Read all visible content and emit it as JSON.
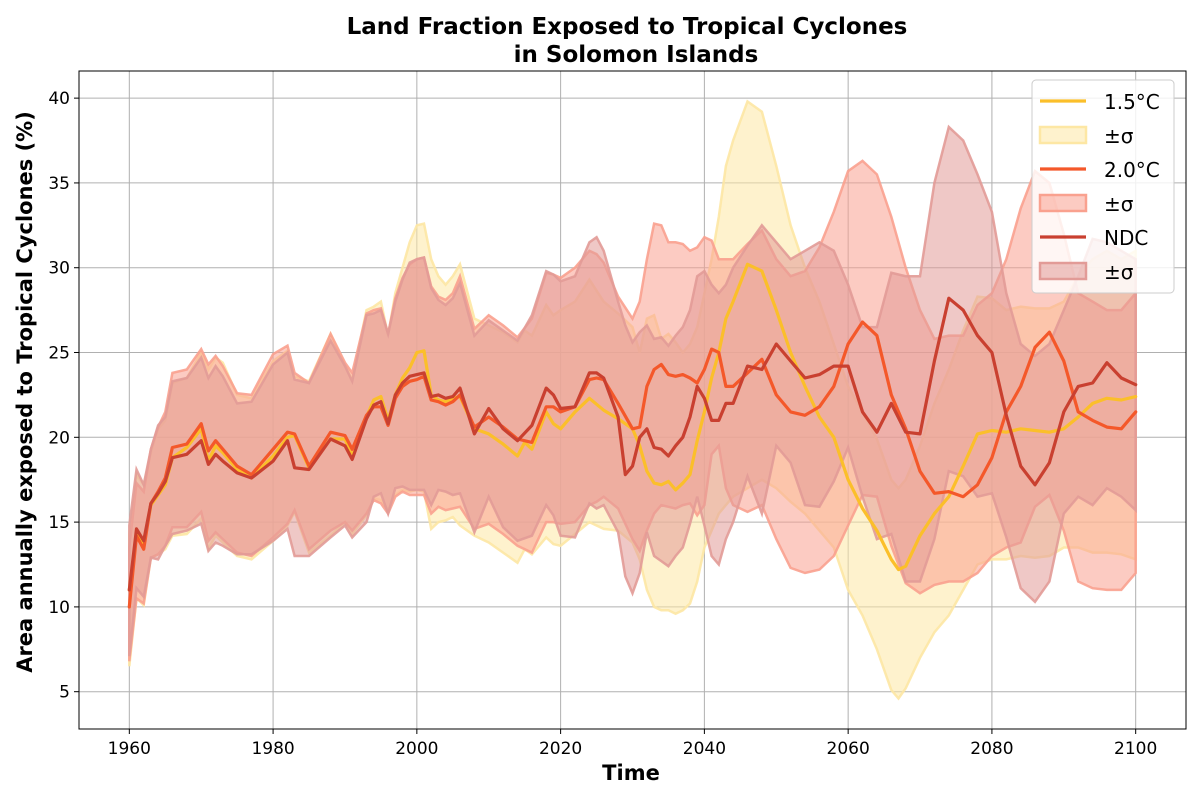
{
  "chart_data": {
    "type": "area",
    "title": "Land Fraction Exposed to Tropical Cyclones",
    "subtitle": "in Solomon Islands",
    "xlabel": "Time",
    "ylabel": "Area annually exposed to Tropical Cyclones (%)",
    "xlim": [
      1953,
      2107
    ],
    "ylim": [
      2.8,
      41.6
    ],
    "xticks": [
      1960,
      1980,
      2000,
      2020,
      2040,
      2060,
      2080,
      2100
    ],
    "yticks": [
      5,
      10,
      15,
      20,
      25,
      30,
      35,
      40
    ],
    "grid": true,
    "legend_position": "top-right",
    "series": [
      {
        "name": "1.5°C",
        "band_label": "±σ",
        "color": "#fbbf2a",
        "band_color": "#fde7a4",
        "x": [
          1960,
          1961,
          1962,
          1963,
          1964,
          1965,
          1966,
          1968,
          1970,
          1971,
          1972,
          1973,
          1975,
          1977,
          1980,
          1982,
          1983,
          1985,
          1988,
          1990,
          1991,
          1993,
          1994,
          1995,
          1996,
          1997,
          1998,
          1999,
          2000,
          2001,
          2002,
          2003,
          2004,
          2005,
          2006,
          2008,
          2010,
          2012,
          2014,
          2015,
          2016,
          2018,
          2019,
          2020,
          2022,
          2024,
          2026,
          2028,
          2030,
          2031,
          2032,
          2033,
          2034,
          2035,
          2036,
          2037,
          2038,
          2039,
          2040,
          2041,
          2042,
          2043,
          2044,
          2046,
          2048,
          2050,
          2052,
          2054,
          2056,
          2058,
          2060,
          2062,
          2064,
          2066,
          2067,
          2068,
          2070,
          2072,
          2074,
          2076,
          2078,
          2080,
          2082,
          2084,
          2086,
          2088,
          2090,
          2092,
          2094,
          2096,
          2098,
          2100
        ],
        "mean": [
          11,
          14.3,
          13.7,
          16,
          16.6,
          17.2,
          18.8,
          19.4,
          20.5,
          18.6,
          19.5,
          19.1,
          18.1,
          17.6,
          18.9,
          20,
          20.1,
          18.2,
          19.9,
          19.9,
          18.9,
          21.2,
          22.2,
          22.4,
          21,
          22.5,
          23.5,
          24.1,
          25,
          25.1,
          22.5,
          22.2,
          22.1,
          22.3,
          22.4,
          20.5,
          20.2,
          19.6,
          18.9,
          19.7,
          19.3,
          21.5,
          20.8,
          20.5,
          21.5,
          22.3,
          21.6,
          21.1,
          20.5,
          19.5,
          18,
          17.3,
          17.2,
          17.4,
          16.9,
          17.3,
          17.8,
          19.8,
          21.5,
          23.5,
          25,
          27,
          28,
          30.2,
          29.8,
          27.5,
          25,
          23,
          21.2,
          20,
          17.5,
          15.8,
          14.5,
          12.8,
          12.2,
          12.4,
          14.2,
          15.5,
          16.5,
          18.3,
          20.2,
          20.4,
          20.3,
          20.5,
          20.4,
          20.3,
          20.5,
          21.2,
          22,
          22.3,
          22.2,
          22.4
        ],
        "upper": [
          14.3,
          17.8,
          17.2,
          19.1,
          20.5,
          21,
          23.2,
          23.5,
          25,
          24,
          24.7,
          24.4,
          22.5,
          22.3,
          24.5,
          25.1,
          23.6,
          23.3,
          26.1,
          24.3,
          23.4,
          27.5,
          27.7,
          28,
          26,
          28.5,
          30,
          31.5,
          32.5,
          32.6,
          30.5,
          29.5,
          29,
          29.5,
          30.2,
          27,
          26.6,
          26.2,
          25.6,
          26.3,
          26,
          27.8,
          27.2,
          27.5,
          28,
          29.3,
          28,
          27.3,
          26.5,
          25,
          27,
          27.2,
          25.8,
          26.1,
          25.6,
          25,
          25.5,
          26.5,
          28.5,
          30.5,
          33,
          36,
          37.5,
          39.8,
          39.2,
          36,
          32.5,
          30,
          28,
          25.5,
          23,
          21.5,
          19.9,
          17.5,
          17,
          17.5,
          19.5,
          22,
          24,
          26.3,
          28.3,
          28.2,
          27.5,
          27.7,
          27.6,
          27.6,
          28,
          29.5,
          30.5,
          31,
          30.5,
          31
        ],
        "lower": [
          6.5,
          10.5,
          10.1,
          12.9,
          13.1,
          13.4,
          14.2,
          14.3,
          15.2,
          13.4,
          14.2,
          13.8,
          13,
          12.8,
          13.9,
          14.8,
          15.6,
          13.2,
          14.2,
          15,
          14.3,
          15.4,
          16.4,
          16.3,
          15.7,
          16.6,
          16.9,
          16.8,
          16.9,
          16.8,
          14.6,
          15,
          15.1,
          15.3,
          14.8,
          14.2,
          13.8,
          13.2,
          12.6,
          13.4,
          13.1,
          14.1,
          13.7,
          13.6,
          14.3,
          15,
          14.6,
          14.5,
          13.8,
          12.8,
          11,
          10,
          9.8,
          9.8,
          9.6,
          9.8,
          10.2,
          11.5,
          13.5,
          14.5,
          15.5,
          16,
          16.5,
          17,
          17.5,
          17,
          16.2,
          15.5,
          14.5,
          13.5,
          11,
          9.5,
          7.5,
          5.1,
          4.6,
          5.2,
          7,
          8.5,
          9.5,
          11,
          12.5,
          12.8,
          12.8,
          13,
          12.9,
          13,
          13.5,
          13.5,
          13.2,
          13.2,
          13.1,
          12.8
        ]
      },
      {
        "name": "2.0°C",
        "band_label": "±σ",
        "color": "#f4582a",
        "band_color": "#f9a18f",
        "x": [
          1960,
          1961,
          1962,
          1963,
          1964,
          1965,
          1966,
          1968,
          1970,
          1971,
          1972,
          1973,
          1975,
          1977,
          1980,
          1982,
          1983,
          1985,
          1988,
          1990,
          1991,
          1993,
          1994,
          1995,
          1996,
          1997,
          1998,
          1999,
          2000,
          2001,
          2002,
          2003,
          2004,
          2005,
          2006,
          2008,
          2010,
          2012,
          2014,
          2016,
          2018,
          2019,
          2020,
          2022,
          2024,
          2025,
          2026,
          2028,
          2030,
          2031,
          2032,
          2033,
          2034,
          2035,
          2036,
          2037,
          2038,
          2039,
          2040,
          2041,
          2042,
          2043,
          2044,
          2046,
          2048,
          2050,
          2052,
          2054,
          2056,
          2058,
          2060,
          2062,
          2064,
          2066,
          2068,
          2070,
          2072,
          2074,
          2076,
          2078,
          2080,
          2082,
          2084,
          2086,
          2088,
          2090,
          2092,
          2094,
          2096,
          2098,
          2100
        ],
        "mean": [
          10,
          14.2,
          13.4,
          16.1,
          16.8,
          17.6,
          19.4,
          19.6,
          20.8,
          19.2,
          19.8,
          19.3,
          18.3,
          17.8,
          19.3,
          20.3,
          20.2,
          18.3,
          20.3,
          20.1,
          19.3,
          21.3,
          21.8,
          21.8,
          20.7,
          22.3,
          23,
          23.3,
          23.4,
          23.6,
          22.2,
          22.1,
          21.9,
          22.1,
          22.5,
          20.6,
          21.2,
          20.6,
          19.9,
          19.7,
          21.8,
          21.8,
          21.5,
          21.8,
          23.4,
          23.5,
          23.4,
          22,
          20.5,
          20.6,
          23,
          24,
          24.3,
          23.7,
          23.6,
          23.7,
          23.5,
          23.2,
          24,
          25.2,
          25,
          23,
          23,
          23.8,
          24.6,
          22.5,
          21.5,
          21.3,
          21.8,
          23,
          25.5,
          26.8,
          26,
          22.5,
          20.5,
          18,
          16.7,
          16.8,
          16.5,
          17.2,
          18.8,
          21.5,
          23,
          25.3,
          26.2,
          24.5,
          21.5,
          21,
          20.6,
          20.5,
          21.5
        ],
        "upper": [
          13.5,
          17.3,
          16.8,
          19.3,
          20.6,
          21.5,
          23.8,
          24,
          25.2,
          24.3,
          24.8,
          24.2,
          22.6,
          22.5,
          24.9,
          25.4,
          23.8,
          23.2,
          26.1,
          24.4,
          23.8,
          27.3,
          27.5,
          27.6,
          26.1,
          28.2,
          29.4,
          30.2,
          30.5,
          30.6,
          28.9,
          28.3,
          28.1,
          28.5,
          29.5,
          26.4,
          27.2,
          26.6,
          25.9,
          27,
          29.7,
          29.6,
          29.4,
          30,
          31,
          30.8,
          30.3,
          28.3,
          27,
          28,
          30.5,
          32.6,
          32.5,
          31.5,
          31.5,
          31.4,
          31,
          31.2,
          31.8,
          31.6,
          30.5,
          30.5,
          30.5,
          31.4,
          32.2,
          30.5,
          29.5,
          29.8,
          31.2,
          33.3,
          35.7,
          36.3,
          35.5,
          33,
          30,
          27.5,
          25.8,
          26,
          26,
          27.8,
          28.5,
          30.5,
          33.5,
          35.7,
          35,
          32,
          28.5,
          28,
          27.5,
          27.5,
          28.5
        ],
        "lower": [
          6.8,
          10.5,
          10.2,
          12.9,
          13.1,
          13.6,
          14.7,
          14.7,
          15.6,
          13.9,
          14.4,
          14,
          13.2,
          13,
          14.1,
          14.9,
          15.7,
          13.4,
          14.5,
          15,
          14.5,
          15.5,
          16.3,
          16.1,
          15.5,
          16.5,
          16.8,
          16.6,
          16.6,
          16.6,
          15.5,
          15.9,
          15.7,
          15.8,
          15.9,
          14.6,
          14.9,
          14.3,
          13.6,
          13.2,
          15,
          15,
          14.9,
          15,
          16,
          16.2,
          16.5,
          15.8,
          14,
          13.3,
          14.5,
          15.5,
          16,
          15.9,
          15.8,
          16,
          16.1,
          15.4,
          16,
          19,
          19.5,
          17,
          16,
          15.6,
          16,
          14,
          12.3,
          12,
          12.2,
          13,
          14.8,
          16.6,
          16.5,
          13.6,
          11.4,
          10.8,
          11.3,
          11.5,
          11.5,
          12,
          13,
          13.5,
          13.8,
          15.9,
          16.6,
          14.5,
          11.5,
          11.1,
          11,
          11,
          12
        ],
        "series_label": "2.0°C"
      },
      {
        "name": "NDC",
        "band_label": "±σ",
        "color": "#c94030",
        "band_color": "#e29b97",
        "x": [
          1960,
          1961,
          1962,
          1963,
          1964,
          1965,
          1966,
          1968,
          1970,
          1971,
          1972,
          1973,
          1975,
          1977,
          1980,
          1982,
          1983,
          1985,
          1988,
          1990,
          1991,
          1993,
          1994,
          1995,
          1996,
          1997,
          1998,
          1999,
          2000,
          2001,
          2002,
          2003,
          2004,
          2005,
          2006,
          2008,
          2010,
          2012,
          2014,
          2016,
          2018,
          2019,
          2020,
          2022,
          2024,
          2025,
          2026,
          2028,
          2029,
          2030,
          2031,
          2032,
          2033,
          2034,
          2035,
          2036,
          2037,
          2038,
          2039,
          2040,
          2041,
          2042,
          2043,
          2044,
          2046,
          2048,
          2050,
          2052,
          2054,
          2056,
          2058,
          2060,
          2062,
          2064,
          2066,
          2068,
          2070,
          2072,
          2074,
          2076,
          2078,
          2080,
          2082,
          2084,
          2086,
          2088,
          2090,
          2092,
          2094,
          2096,
          2098,
          2100
        ],
        "mean": [
          11,
          14.6,
          13.9,
          16.1,
          16.7,
          17.4,
          18.8,
          19,
          19.8,
          18.4,
          19,
          18.6,
          17.9,
          17.6,
          18.6,
          19.8,
          18.2,
          18.1,
          19.9,
          19.5,
          18.7,
          21.1,
          21.9,
          22.1,
          20.8,
          22.5,
          23.2,
          23.6,
          23.7,
          23.8,
          22.4,
          22.5,
          22.3,
          22.4,
          22.9,
          20.2,
          21.7,
          20.5,
          19.8,
          20.7,
          22.9,
          22.5,
          21.7,
          21.8,
          23.8,
          23.8,
          23.5,
          21.2,
          17.8,
          18.3,
          20,
          20.5,
          19.4,
          19.3,
          18.9,
          19.5,
          20,
          21.2,
          23,
          22.3,
          21,
          21,
          22,
          22,
          24.2,
          24,
          25.5,
          24.5,
          23.5,
          23.7,
          24.2,
          24.2,
          21.5,
          20.3,
          22,
          20.3,
          20.2,
          24.5,
          28.2,
          27.5,
          26,
          25,
          21.3,
          18.3,
          17.2,
          18.5,
          21.5,
          23,
          23.2,
          24.4,
          23.5,
          23.1
        ],
        "upper": [
          14.8,
          18.1,
          17.2,
          19.3,
          20.7,
          21.2,
          23.3,
          23.5,
          24.7,
          23.5,
          24.2,
          23.6,
          22,
          22.1,
          24.3,
          25,
          23.4,
          23.2,
          25.7,
          24.2,
          23.3,
          27.2,
          27.3,
          27.5,
          26.1,
          28,
          29.3,
          30.3,
          30.5,
          30.6,
          28.8,
          28.1,
          27.8,
          28.2,
          29.1,
          26,
          26.9,
          26.3,
          25.7,
          27.2,
          29.8,
          29.6,
          29.2,
          29.5,
          31.5,
          31.8,
          31,
          28,
          26.6,
          25.6,
          26.2,
          26.6,
          25.8,
          25.9,
          25.4,
          26,
          26.5,
          27.5,
          29.5,
          29.8,
          29,
          28.5,
          29,
          30,
          31.3,
          32.5,
          31.5,
          30.5,
          31,
          31.5,
          31,
          29,
          26.5,
          26.5,
          29.7,
          29.5,
          29.5,
          35,
          38.3,
          37.5,
          35.5,
          33.3,
          28.5,
          25.5,
          24.8,
          25.5,
          27.5,
          29.5,
          31.7,
          31.5,
          31,
          30.5
        ],
        "lower": [
          7.1,
          11.1,
          10.6,
          12.9,
          12.8,
          13.6,
          14.3,
          14.5,
          14.9,
          13.3,
          13.8,
          13.6,
          13.1,
          13.1,
          13.9,
          14.6,
          13,
          13,
          14.1,
          14.8,
          14.1,
          15,
          16.5,
          16.7,
          15.5,
          17,
          17.1,
          16.9,
          16.9,
          16.9,
          16,
          16.9,
          16.8,
          16.6,
          16.7,
          14.4,
          16.5,
          14.7,
          13.9,
          14.2,
          16,
          15.4,
          14.2,
          14.1,
          16.1,
          15.8,
          16,
          14.4,
          11.8,
          10.8,
          12,
          14.4,
          13,
          12.7,
          12.4,
          13,
          13.5,
          14.9,
          16.5,
          14.8,
          13,
          12.5,
          14,
          15,
          17.7,
          15.5,
          19.5,
          18.5,
          16,
          15.9,
          17.4,
          19.4,
          16.5,
          14,
          14.3,
          11.5,
          11.5,
          14,
          18,
          17.7,
          16.5,
          16.7,
          14.1,
          11.1,
          10.3,
          11.5,
          15.5,
          16.5,
          16,
          17,
          16.5,
          15.7
        ]
      }
    ]
  }
}
